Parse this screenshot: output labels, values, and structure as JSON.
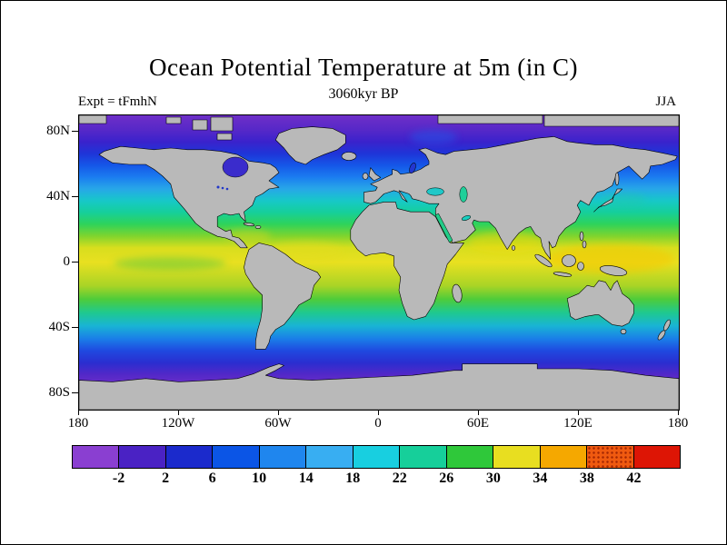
{
  "figure": {
    "title": "Ocean Potential Temperature at 5m (in C)",
    "subtitle": "3060kyr BP",
    "experiment_label": "Expt = tFmhN",
    "season_label": "JJA"
  },
  "chart_data": {
    "type": "heatmap",
    "title": "Ocean Potential Temperature at 5m (in C)",
    "subtitle": "3060kyr BP",
    "experiment": "Expt = tFmhN",
    "season": "JJA",
    "units": "C",
    "projection": "equirectangular world map, 90N to 90S, 180W to 180E",
    "x_axis": {
      "ticks": [
        {
          "label": "180",
          "value": -180
        },
        {
          "label": "120W",
          "value": -120
        },
        {
          "label": "60W",
          "value": -60
        },
        {
          "label": "0",
          "value": 0
        },
        {
          "label": "60E",
          "value": 60
        },
        {
          "label": "120E",
          "value": 120
        },
        {
          "label": "180",
          "value": 180
        }
      ]
    },
    "y_axis": {
      "ticks": [
        {
          "label": "80N",
          "value": 80
        },
        {
          "label": "40N",
          "value": 40
        },
        {
          "label": "0",
          "value": 0
        },
        {
          "label": "40S",
          "value": -40
        },
        {
          "label": "80S",
          "value": -80
        }
      ]
    },
    "colorbar": {
      "tick_labels": [
        "-2",
        "2",
        "6",
        "10",
        "14",
        "18",
        "22",
        "26",
        "30",
        "34",
        "38",
        "42"
      ],
      "boundaries_c": [
        -2,
        2,
        6,
        10,
        14,
        18,
        22,
        26,
        30,
        34,
        38,
        42
      ],
      "colors": [
        "#8a3fd1",
        "#4a22c4",
        "#1b2acc",
        "#0b55e6",
        "#1f86ee",
        "#38aef2",
        "#18cfe0",
        "#16cf9a",
        "#2fc83a",
        "#e8de20",
        "#f5a800",
        "#f05a10",
        "#dd1505"
      ],
      "stippled_cell_index": 11
    },
    "land_color": "#b9b9b9",
    "zonal_mean_estimate": [
      {
        "lat": 85,
        "t": -1
      },
      {
        "lat": 70,
        "t": 0
      },
      {
        "lat": 60,
        "t": 4
      },
      {
        "lat": 50,
        "t": 9
      },
      {
        "lat": 40,
        "t": 16
      },
      {
        "lat": 30,
        "t": 22
      },
      {
        "lat": 20,
        "t": 26
      },
      {
        "lat": 10,
        "t": 28
      },
      {
        "lat": 0,
        "t": 28
      },
      {
        "lat": -10,
        "t": 27
      },
      {
        "lat": -20,
        "t": 24
      },
      {
        "lat": -30,
        "t": 19
      },
      {
        "lat": -40,
        "t": 12
      },
      {
        "lat": -50,
        "t": 5
      },
      {
        "lat": -60,
        "t": 0
      },
      {
        "lat": -70,
        "t": -1
      },
      {
        "lat": -85,
        "t": -2
      }
    ],
    "ocean_zonal_gradient": [
      {
        "pos": 0.0,
        "color": "#6e2fc8"
      },
      {
        "pos": 0.05,
        "color": "#5628c8"
      },
      {
        "pos": 0.09,
        "color": "#3a22cc"
      },
      {
        "pos": 0.13,
        "color": "#1f35d8"
      },
      {
        "pos": 0.17,
        "color": "#1557e8"
      },
      {
        "pos": 0.21,
        "color": "#1b7df0"
      },
      {
        "pos": 0.25,
        "color": "#27a7e8"
      },
      {
        "pos": 0.29,
        "color": "#17c8c8"
      },
      {
        "pos": 0.33,
        "color": "#16cf9a"
      },
      {
        "pos": 0.37,
        "color": "#2fd35a"
      },
      {
        "pos": 0.41,
        "color": "#7fd42e"
      },
      {
        "pos": 0.45,
        "color": "#d8de1e"
      },
      {
        "pos": 0.5,
        "color": "#e8e020"
      },
      {
        "pos": 0.58,
        "color": "#a8d426"
      },
      {
        "pos": 0.625,
        "color": "#4ecc3a"
      },
      {
        "pos": 0.67,
        "color": "#1fc98e"
      },
      {
        "pos": 0.715,
        "color": "#19b4d4"
      },
      {
        "pos": 0.76,
        "color": "#1a7de8"
      },
      {
        "pos": 0.8,
        "color": "#1f49e0"
      },
      {
        "pos": 0.84,
        "color": "#2a2ed0"
      },
      {
        "pos": 0.88,
        "color": "#5228c8"
      },
      {
        "pos": 0.92,
        "color": "#6e2fc8"
      },
      {
        "pos": 1.0,
        "color": "#6e2fc8"
      }
    ]
  }
}
